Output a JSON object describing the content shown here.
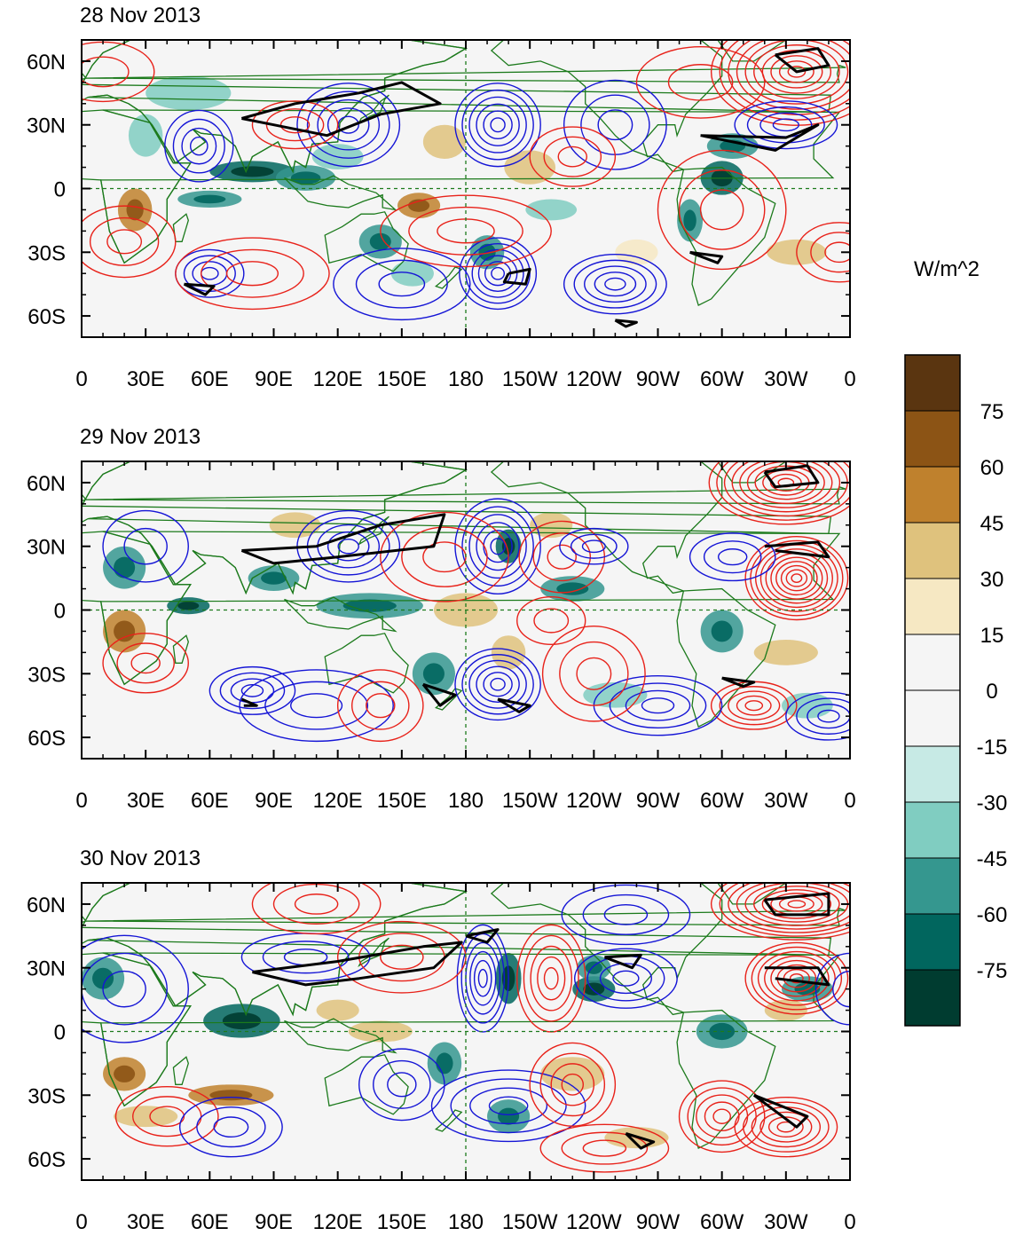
{
  "panels": [
    {
      "title": "28 Nov 2013"
    },
    {
      "title": "29 Nov 2013"
    },
    {
      "title": "30 Nov 2013"
    }
  ],
  "axes": {
    "lat_labels": [
      "60N",
      "30N",
      "0",
      "30S",
      "60S"
    ],
    "lon_labels": [
      "0",
      "30E",
      "60E",
      "90E",
      "120E",
      "150E",
      "180",
      "150W",
      "120W",
      "90W",
      "60W",
      "30W",
      "0"
    ]
  },
  "colorbar": {
    "unit": "W/m^2",
    "labels": [
      "75",
      "60",
      "45",
      "30",
      "15",
      "0",
      "-15",
      "-30",
      "-45",
      "-60",
      "-75"
    ],
    "colors": [
      "#5a3510",
      "#8c5415",
      "#bf812d",
      "#dfc27d",
      "#f6e8c3",
      "#f5f5f5",
      "#f5f5f5",
      "#c7eae5",
      "#80cdc1",
      "#35978f",
      "#01665e",
      "#003c30"
    ]
  },
  "colors": {
    "positive_contour": "#e8221a",
    "negative_contour": "#1515d6",
    "coastline": "#1c7a1c",
    "thick_contour": "#000000"
  }
}
